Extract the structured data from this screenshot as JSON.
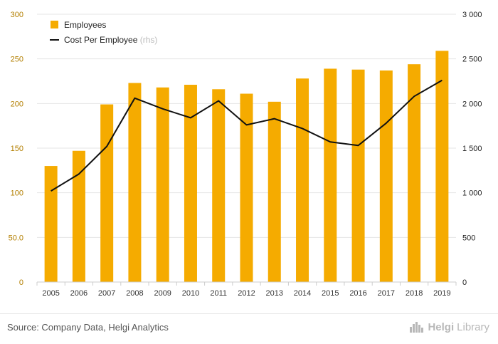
{
  "chart_data": {
    "type": "bar+line",
    "categories": [
      "2005",
      "2006",
      "2007",
      "2008",
      "2009",
      "2010",
      "2011",
      "2012",
      "2013",
      "2014",
      "2015",
      "2016",
      "2017",
      "2018",
      "2019"
    ],
    "series": [
      {
        "name": "Employees",
        "type": "bar",
        "axis": "left",
        "values": [
          130,
          147,
          199,
          223,
          218,
          221,
          216,
          211,
          202,
          228,
          239,
          238,
          237,
          244,
          259
        ]
      },
      {
        "name": "Cost Per Employee",
        "type": "line",
        "axis": "right",
        "values": [
          1020,
          1210,
          1520,
          2060,
          1940,
          1840,
          2030,
          1760,
          1830,
          1720,
          1570,
          1530,
          1780,
          2080,
          2260
        ]
      }
    ],
    "y_left": {
      "ylim": [
        0,
        300
      ],
      "ticks": [
        "0",
        "50.0",
        "100",
        "150",
        "200",
        "250",
        "300"
      ]
    },
    "y_right": {
      "ylim": [
        0,
        3000
      ],
      "ticks": [
        "0",
        "500",
        "1 000",
        "1 500",
        "2 000",
        "2 500",
        "3 000"
      ]
    },
    "legend": {
      "position": "top-left",
      "entries": [
        "Employees",
        "Cost Per Employee"
      ],
      "note": "(rhs)"
    },
    "grid": "horizontal"
  },
  "colors": {
    "bar": "#f5ab00",
    "line": "#111111",
    "grid": "#e5e5e5",
    "left_tick": "#b37f00"
  },
  "footer": {
    "source": "Source: Company Data, Helgi Analytics",
    "brand_a": "Helgi",
    "brand_b": "Library"
  }
}
